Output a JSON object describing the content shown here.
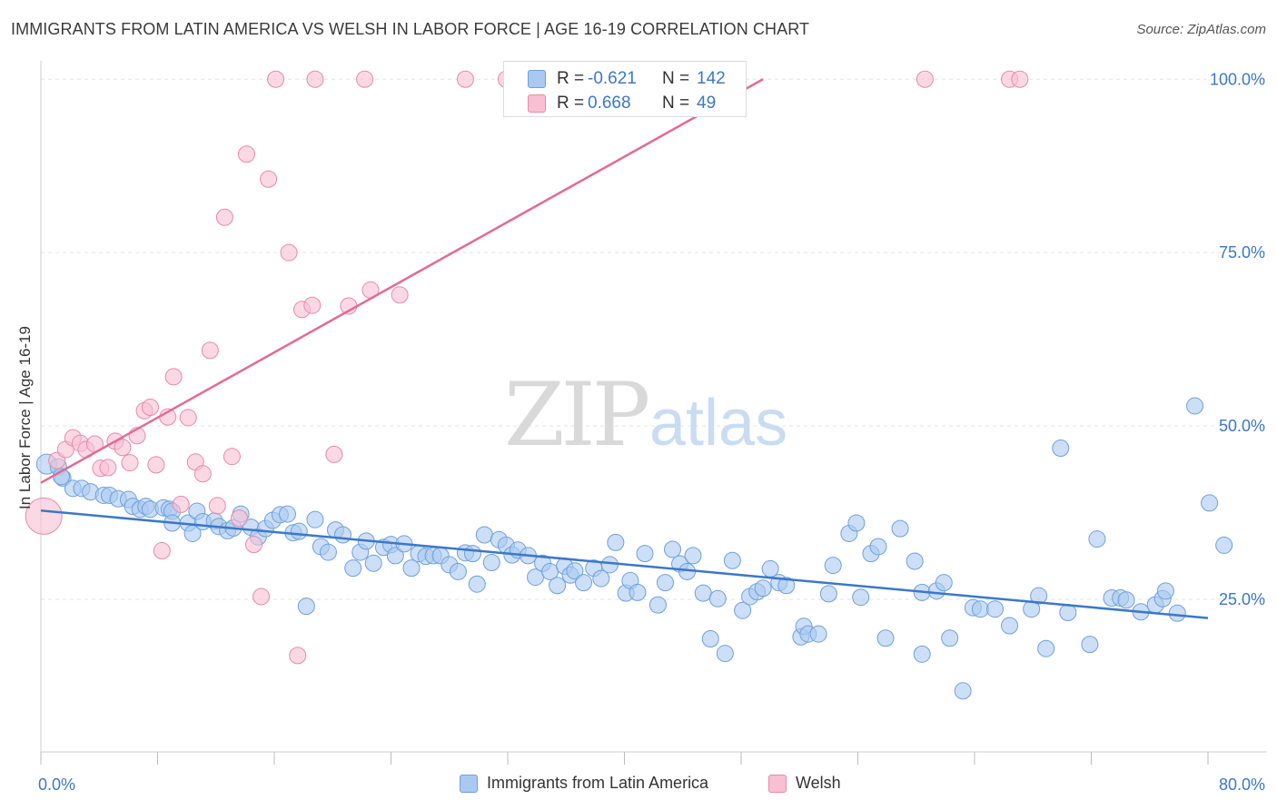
{
  "title": "IMMIGRANTS FROM LATIN AMERICA VS WELSH IN LABOR FORCE | AGE 16-19 CORRELATION CHART",
  "source": "Source: ZipAtlas.com",
  "watermark": {
    "zip": "ZIP",
    "atlas": "atlas"
  },
  "legend_box": {
    "rows": [
      {
        "r_label": "R =",
        "r_value": "-0.621",
        "n_label": "N =",
        "n_value": "142",
        "color": "#aac9f0",
        "border": "#6fa0dc"
      },
      {
        "r_label": "R =",
        "r_value": "0.668",
        "n_label": "N =",
        "n_value": "49",
        "color": "#f8c0d2",
        "border": "#e88aa8"
      }
    ]
  },
  "bottom_legend": {
    "items": [
      {
        "label": "Immigrants from Latin America",
        "color": "#aac9f0",
        "border": "#6fa0dc"
      },
      {
        "label": "Welsh",
        "color": "#f8c0d2",
        "border": "#e88aa8"
      }
    ]
  },
  "chart_data": {
    "type": "scatter",
    "title": "IMMIGRANTS FROM LATIN AMERICA VS WELSH IN LABOR FORCE | AGE 16-19 CORRELATION CHART",
    "xlabel": "",
    "ylabel": "In Labor Force | Age 16-19",
    "xlim": [
      0,
      80
    ],
    "ylim": [
      3,
      102
    ],
    "x_tick_labels": [
      "0.0%",
      "80.0%"
    ],
    "y_ticks": [
      25,
      50,
      75,
      100
    ],
    "y_tick_labels": [
      "25.0%",
      "50.0%",
      "75.0%",
      "100.0%"
    ],
    "grid": true,
    "colors": {
      "blue": "#3b78c8",
      "blue_fill": "#aac9f0",
      "pink": "#e36a94",
      "pink_fill": "#f8c0d2",
      "axis_text": "#3b78c8"
    },
    "series": [
      {
        "name": "Immigrants from Latin America",
        "color": "#6fa0dc",
        "fill": "#aac9f0",
        "trend": {
          "x": [
            0,
            80
          ],
          "y": [
            37.8,
            22.3
          ]
        },
        "points": [
          [
            0.4,
            44.5
          ],
          [
            1.2,
            44.1
          ],
          [
            1.5,
            42.5
          ],
          [
            1.4,
            42.7
          ],
          [
            2.2,
            41.0
          ],
          [
            2.8,
            41.0
          ],
          [
            3.4,
            40.5
          ],
          [
            4.3,
            40.0
          ],
          [
            4.7,
            40.0
          ],
          [
            5.3,
            39.5
          ],
          [
            6.0,
            39.4
          ],
          [
            6.3,
            38.4
          ],
          [
            6.8,
            38.0
          ],
          [
            7.2,
            38.4
          ],
          [
            7.5,
            38.0
          ],
          [
            8.4,
            38.2
          ],
          [
            8.8,
            38.0
          ],
          [
            9.0,
            37.7
          ],
          [
            9.0,
            36.0
          ],
          [
            10.1,
            36.0
          ],
          [
            10.4,
            34.5
          ],
          [
            10.7,
            37.7
          ],
          [
            11.1,
            36.2
          ],
          [
            11.9,
            36.3
          ],
          [
            12.2,
            35.5
          ],
          [
            12.8,
            34.9
          ],
          [
            13.2,
            35.3
          ],
          [
            13.7,
            37.3
          ],
          [
            14.4,
            35.4
          ],
          [
            14.9,
            34.0
          ],
          [
            15.4,
            35.2
          ],
          [
            15.9,
            36.4
          ],
          [
            16.4,
            37.2
          ],
          [
            16.9,
            37.3
          ],
          [
            17.3,
            34.6
          ],
          [
            17.7,
            34.8
          ],
          [
            18.2,
            24.0
          ],
          [
            18.8,
            36.5
          ],
          [
            19.2,
            32.6
          ],
          [
            19.7,
            31.8
          ],
          [
            20.2,
            35.0
          ],
          [
            20.7,
            34.3
          ],
          [
            21.4,
            29.5
          ],
          [
            21.9,
            31.8
          ],
          [
            22.3,
            33.4
          ],
          [
            22.8,
            30.2
          ],
          [
            23.5,
            32.5
          ],
          [
            24.0,
            32.9
          ],
          [
            24.3,
            31.3
          ],
          [
            24.9,
            33.0
          ],
          [
            25.4,
            29.5
          ],
          [
            25.9,
            31.6
          ],
          [
            26.4,
            31.2
          ],
          [
            26.9,
            31.3
          ],
          [
            27.4,
            31.3
          ],
          [
            28.0,
            30.0
          ],
          [
            28.6,
            29.0
          ],
          [
            29.1,
            31.7
          ],
          [
            29.6,
            31.6
          ],
          [
            29.9,
            27.2
          ],
          [
            30.4,
            34.3
          ],
          [
            30.9,
            30.3
          ],
          [
            31.4,
            33.6
          ],
          [
            31.9,
            32.8
          ],
          [
            32.3,
            31.4
          ],
          [
            32.7,
            32.1
          ],
          [
            33.4,
            31.3
          ],
          [
            33.9,
            28.2
          ],
          [
            34.4,
            30.2
          ],
          [
            34.9,
            29.0
          ],
          [
            35.4,
            27.0
          ],
          [
            35.9,
            29.8
          ],
          [
            36.3,
            28.5
          ],
          [
            36.6,
            29.1
          ],
          [
            37.2,
            27.4
          ],
          [
            37.9,
            29.5
          ],
          [
            38.4,
            28.0
          ],
          [
            39.0,
            30.0
          ],
          [
            39.4,
            33.2
          ],
          [
            40.1,
            25.9
          ],
          [
            40.4,
            27.7
          ],
          [
            40.9,
            26.0
          ],
          [
            41.4,
            31.6
          ],
          [
            42.3,
            24.2
          ],
          [
            42.8,
            27.4
          ],
          [
            43.3,
            32.2
          ],
          [
            43.8,
            30.1
          ],
          [
            44.3,
            29.0
          ],
          [
            44.7,
            31.3
          ],
          [
            45.4,
            25.9
          ],
          [
            45.9,
            19.3
          ],
          [
            46.4,
            25.1
          ],
          [
            46.9,
            17.2
          ],
          [
            47.4,
            30.6
          ],
          [
            48.1,
            23.4
          ],
          [
            48.6,
            25.4
          ],
          [
            49.1,
            26.1
          ],
          [
            49.5,
            26.6
          ],
          [
            50.0,
            29.4
          ],
          [
            50.6,
            27.4
          ],
          [
            51.1,
            27.0
          ],
          [
            52.1,
            19.6
          ],
          [
            52.3,
            21.1
          ],
          [
            52.6,
            20.0
          ],
          [
            53.3,
            20.0
          ],
          [
            54.0,
            25.8
          ],
          [
            54.3,
            29.9
          ],
          [
            55.4,
            34.5
          ],
          [
            55.9,
            36.0
          ],
          [
            56.2,
            25.3
          ],
          [
            56.9,
            31.6
          ],
          [
            57.4,
            32.6
          ],
          [
            57.9,
            19.4
          ],
          [
            58.9,
            35.2
          ],
          [
            59.9,
            30.5
          ],
          [
            60.4,
            26.0
          ],
          [
            60.4,
            17.1
          ],
          [
            61.4,
            26.2
          ],
          [
            61.9,
            27.4
          ],
          [
            62.3,
            19.4
          ],
          [
            63.2,
            11.8
          ],
          [
            63.9,
            23.8
          ],
          [
            64.4,
            23.6
          ],
          [
            65.4,
            23.6
          ],
          [
            66.4,
            21.2
          ],
          [
            67.9,
            23.6
          ],
          [
            68.4,
            25.5
          ],
          [
            68.9,
            17.9
          ],
          [
            69.9,
            46.8
          ],
          [
            70.4,
            23.1
          ],
          [
            71.9,
            18.5
          ],
          [
            72.4,
            33.7
          ],
          [
            73.4,
            25.2
          ],
          [
            74.0,
            25.2
          ],
          [
            74.4,
            24.9
          ],
          [
            75.4,
            23.2
          ],
          [
            76.4,
            24.2
          ],
          [
            76.9,
            25.1
          ],
          [
            77.1,
            26.2
          ],
          [
            77.9,
            23.0
          ],
          [
            79.1,
            52.9
          ],
          [
            80.1,
            38.9
          ],
          [
            81.1,
            32.8
          ]
        ]
      },
      {
        "name": "Welsh",
        "color": "#e88aa8",
        "fill": "#f8c0d2",
        "trend": {
          "x": [
            0,
            49.5
          ],
          "y": [
            41.8,
            100.0
          ]
        },
        "points": [
          [
            0.2,
            37.0
          ],
          [
            1.1,
            45.0
          ],
          [
            1.7,
            46.6
          ],
          [
            2.2,
            48.3
          ],
          [
            2.7,
            47.5
          ],
          [
            3.1,
            46.6
          ],
          [
            3.7,
            47.4
          ],
          [
            4.1,
            43.9
          ],
          [
            4.6,
            44.0
          ],
          [
            5.1,
            47.8
          ],
          [
            5.6,
            46.9
          ],
          [
            6.1,
            44.7
          ],
          [
            6.6,
            48.6
          ],
          [
            7.1,
            52.2
          ],
          [
            7.5,
            52.7
          ],
          [
            7.9,
            44.4
          ],
          [
            8.3,
            32.0
          ],
          [
            8.7,
            51.3
          ],
          [
            9.1,
            57.1
          ],
          [
            9.6,
            38.7
          ],
          [
            10.1,
            51.2
          ],
          [
            10.6,
            44.8
          ],
          [
            11.1,
            43.1
          ],
          [
            11.6,
            60.9
          ],
          [
            12.1,
            38.5
          ],
          [
            12.6,
            80.1
          ],
          [
            13.1,
            45.6
          ],
          [
            13.6,
            36.7
          ],
          [
            14.1,
            89.2
          ],
          [
            14.6,
            32.9
          ],
          [
            15.1,
            25.4
          ],
          [
            15.6,
            85.6
          ],
          [
            16.1,
            100.0
          ],
          [
            17.0,
            75.0
          ],
          [
            17.6,
            16.9
          ],
          [
            17.9,
            66.8
          ],
          [
            18.6,
            67.4
          ],
          [
            18.8,
            100.0
          ],
          [
            20.1,
            45.9
          ],
          [
            21.1,
            67.3
          ],
          [
            22.2,
            100.0
          ],
          [
            22.6,
            69.6
          ],
          [
            24.6,
            68.9
          ],
          [
            29.1,
            100.0
          ],
          [
            31.9,
            100.0
          ],
          [
            36.1,
            100.0
          ],
          [
            60.6,
            100.0
          ],
          [
            66.4,
            100.0
          ],
          [
            67.1,
            100.0
          ]
        ]
      }
    ]
  }
}
